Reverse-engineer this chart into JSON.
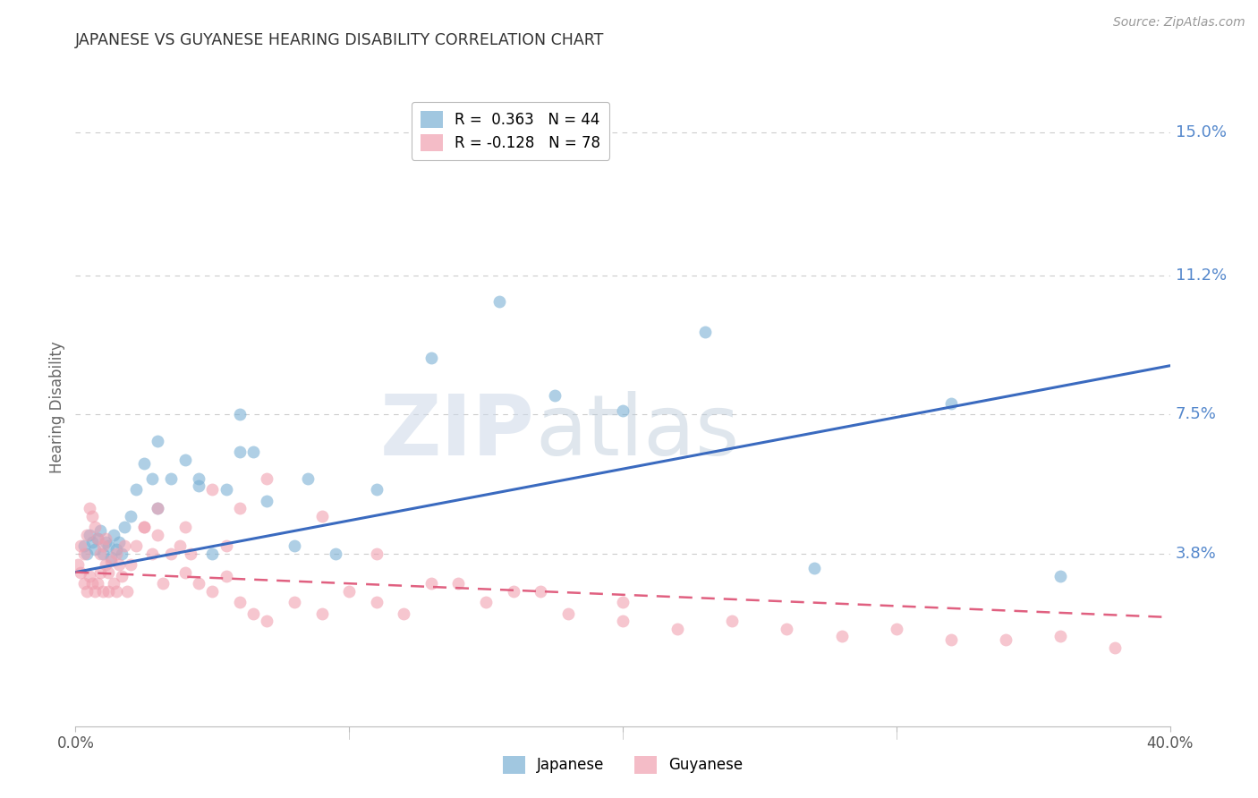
{
  "title": "JAPANESE VS GUYANESE HEARING DISABILITY CORRELATION CHART",
  "source": "Source: ZipAtlas.com",
  "ylabel": "Hearing Disability",
  "xlim": [
    0.0,
    0.4
  ],
  "ylim": [
    -0.008,
    0.162
  ],
  "xticks": [
    0.0,
    0.1,
    0.2,
    0.3,
    0.4
  ],
  "xticklabels": [
    "0.0%",
    "",
    "",
    "",
    "40.0%"
  ],
  "ytick_positions": [
    0.038,
    0.075,
    0.112,
    0.15
  ],
  "ytick_labels": [
    "3.8%",
    "7.5%",
    "11.2%",
    "15.0%"
  ],
  "watermark_part1": "ZIP",
  "watermark_part2": "atlas",
  "legend_r1": "R =  0.363   N = 44",
  "legend_r2": "R = -0.128   N = 78",
  "legend_label1": "Japanese",
  "legend_label2": "Guyanese",
  "blue_color": "#7ab0d4",
  "pink_color": "#f0a0b0",
  "line_blue": "#3a6abf",
  "line_pink": "#e06080",
  "background_color": "#ffffff",
  "grid_color": "#cccccc",
  "title_color": "#333333",
  "axis_label_color": "#666666",
  "ytick_color": "#5588cc",
  "source_color": "#999999",
  "japanese_points_x": [
    0.003,
    0.004,
    0.005,
    0.006,
    0.007,
    0.008,
    0.009,
    0.01,
    0.011,
    0.012,
    0.013,
    0.014,
    0.015,
    0.016,
    0.017,
    0.018,
    0.02,
    0.022,
    0.025,
    0.028,
    0.03,
    0.035,
    0.04,
    0.045,
    0.05,
    0.055,
    0.06,
    0.065,
    0.07,
    0.08,
    0.095,
    0.11,
    0.13,
    0.155,
    0.175,
    0.2,
    0.23,
    0.27,
    0.32,
    0.36,
    0.03,
    0.045,
    0.06,
    0.085
  ],
  "japanese_points_y": [
    0.04,
    0.038,
    0.043,
    0.041,
    0.039,
    0.042,
    0.044,
    0.038,
    0.041,
    0.04,
    0.037,
    0.043,
    0.039,
    0.041,
    0.038,
    0.045,
    0.048,
    0.055,
    0.062,
    0.058,
    0.068,
    0.058,
    0.063,
    0.058,
    0.038,
    0.055,
    0.075,
    0.065,
    0.052,
    0.04,
    0.038,
    0.055,
    0.09,
    0.105,
    0.08,
    0.076,
    0.097,
    0.034,
    0.078,
    0.032,
    0.05,
    0.056,
    0.065,
    0.058
  ],
  "guyanese_points_x": [
    0.001,
    0.002,
    0.002,
    0.003,
    0.003,
    0.004,
    0.004,
    0.005,
    0.005,
    0.006,
    0.006,
    0.007,
    0.007,
    0.008,
    0.008,
    0.009,
    0.009,
    0.01,
    0.01,
    0.011,
    0.011,
    0.012,
    0.012,
    0.013,
    0.014,
    0.015,
    0.015,
    0.016,
    0.017,
    0.018,
    0.019,
    0.02,
    0.022,
    0.025,
    0.028,
    0.03,
    0.032,
    0.035,
    0.038,
    0.04,
    0.042,
    0.045,
    0.05,
    0.055,
    0.06,
    0.065,
    0.07,
    0.08,
    0.09,
    0.1,
    0.11,
    0.12,
    0.13,
    0.15,
    0.16,
    0.18,
    0.2,
    0.22,
    0.24,
    0.26,
    0.28,
    0.3,
    0.32,
    0.34,
    0.36,
    0.38,
    0.05,
    0.06,
    0.07,
    0.09,
    0.11,
    0.14,
    0.17,
    0.2,
    0.03,
    0.025,
    0.04,
    0.055
  ],
  "guyanese_points_y": [
    0.035,
    0.04,
    0.033,
    0.038,
    0.03,
    0.043,
    0.028,
    0.05,
    0.032,
    0.048,
    0.03,
    0.045,
    0.028,
    0.042,
    0.03,
    0.038,
    0.033,
    0.04,
    0.028,
    0.035,
    0.042,
    0.033,
    0.028,
    0.036,
    0.03,
    0.038,
    0.028,
    0.035,
    0.032,
    0.04,
    0.028,
    0.035,
    0.04,
    0.045,
    0.038,
    0.043,
    0.03,
    0.038,
    0.04,
    0.033,
    0.038,
    0.03,
    0.028,
    0.032,
    0.025,
    0.022,
    0.02,
    0.025,
    0.022,
    0.028,
    0.025,
    0.022,
    0.03,
    0.025,
    0.028,
    0.022,
    0.02,
    0.018,
    0.02,
    0.018,
    0.016,
    0.018,
    0.015,
    0.015,
    0.016,
    0.013,
    0.055,
    0.05,
    0.058,
    0.048,
    0.038,
    0.03,
    0.028,
    0.025,
    0.05,
    0.045,
    0.045,
    0.04
  ],
  "blue_line_x": [
    0.0,
    0.4
  ],
  "blue_line_y": [
    0.033,
    0.088
  ],
  "pink_line_x": [
    0.0,
    0.4
  ],
  "pink_line_y": [
    0.033,
    0.021
  ]
}
